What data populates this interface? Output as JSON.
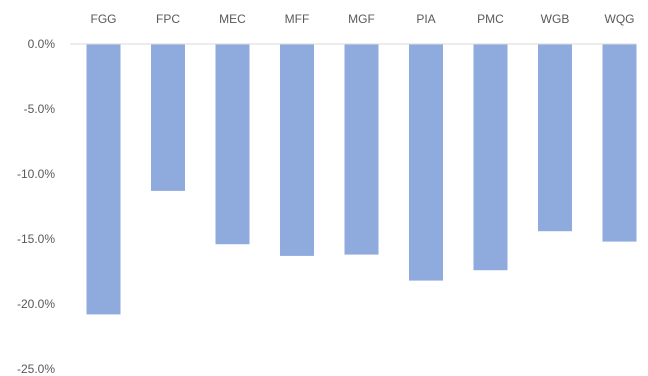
{
  "chart_data": {
    "type": "bar",
    "categories": [
      "FGG",
      "FPC",
      "MEC",
      "MFF",
      "MGF",
      "PIA",
      "PMC",
      "WGB",
      "WQG"
    ],
    "series": [
      {
        "values": [
          -20.8,
          -11.3,
          -15.4,
          -16.3,
          -16.2,
          -18.2,
          -17.4,
          -14.4,
          -15.2
        ]
      }
    ],
    "yticks": [
      "0.0%",
      "-5.0%",
      "-10.0%",
      "-15.0%",
      "-20.0%",
      "-25.0%"
    ],
    "ylim": [
      -25,
      0
    ],
    "ytick_values": [
      0,
      -5,
      -10,
      -15,
      -20,
      -25
    ],
    "bar_color": "#8FAADC",
    "axis_color": "#D9D9D9",
    "category_axis_position": "top",
    "grid": false,
    "legend": "none"
  }
}
